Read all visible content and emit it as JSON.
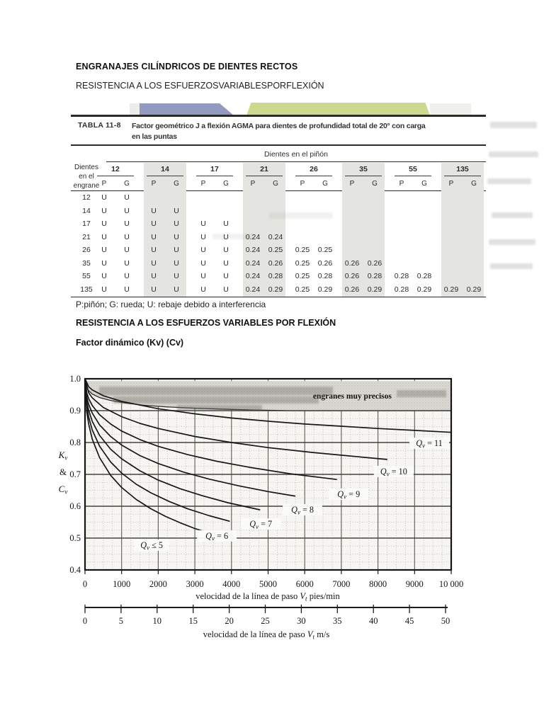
{
  "page": {
    "title": "ENGRANAJES CILÍNDRICOS DE DIENTES RECTOS",
    "subtitle": "RESISTENCIA A LOS ESFUERZOSVARIABLESPORFLEXIÓN",
    "table_note": "P:piñón; G: rueda; U: rebaje debido a interferencia",
    "section_heading": "RESISTENCIA A LOS ESFUERZOS VARIABLES POR FLEXIÓN",
    "subsection_heading": "Factor dinámico (Kv) (Cv)"
  },
  "colors": {
    "deco_blue": "#939ac0",
    "deco_green": "#ccd98e",
    "deco_gray": "#ececea",
    "deco_pale": "#f0f0ed",
    "table_shade": "#e4e4e0",
    "plot_bg": "#f6f5f1",
    "ink": "#1a1a1a"
  },
  "table": {
    "label": "TABLA  11-8",
    "caption_line1": "Factor geométrico J a flexión AGMA para dientes de profundidad total de 20° con carga",
    "caption_line2": "en las puntas",
    "col_group_header": "Dientes en el piñón",
    "stub_header_lines": [
      "Dientes",
      "en el",
      "engrane"
    ],
    "pinion_teeth": [
      "12",
      "14",
      "17",
      "21",
      "26",
      "35",
      "55",
      "135"
    ],
    "sub_cols": [
      "P",
      "G"
    ],
    "shaded_pairs": [
      1,
      3,
      5,
      7
    ],
    "rows": [
      {
        "gear": "12",
        "cells": [
          "U",
          "U",
          "",
          "",
          "",
          "",
          "",
          "",
          "",
          "",
          "",
          "",
          "",
          "",
          "",
          ""
        ]
      },
      {
        "gear": "14",
        "cells": [
          "U",
          "U",
          "U",
          "U",
          "",
          "",
          "",
          "",
          "",
          "",
          "",
          "",
          "",
          "",
          "",
          ""
        ]
      },
      {
        "gear": "17",
        "cells": [
          "U",
          "U",
          "U",
          "U",
          "U",
          "U",
          "",
          "",
          "",
          "",
          "",
          "",
          "",
          "",
          "",
          ""
        ]
      },
      {
        "gear": "21",
        "cells": [
          "U",
          "U",
          "U",
          "U",
          "U",
          "U",
          "0.24",
          "0.24",
          "",
          "",
          "",
          "",
          "",
          "",
          "",
          ""
        ]
      },
      {
        "gear": "26",
        "cells": [
          "U",
          "U",
          "U",
          "U",
          "U",
          "U",
          "0.24",
          "0.25",
          "0.25",
          "0.25",
          "",
          "",
          "",
          "",
          "",
          ""
        ]
      },
      {
        "gear": "35",
        "cells": [
          "U",
          "U",
          "U",
          "U",
          "U",
          "U",
          "0.24",
          "0.26",
          "0.25",
          "0.26",
          "0.26",
          "0.26",
          "",
          "",
          "",
          ""
        ]
      },
      {
        "gear": "55",
        "cells": [
          "U",
          "U",
          "U",
          "U",
          "U",
          "U",
          "0.24",
          "0.28",
          "0.25",
          "0.28",
          "0.26",
          "0.28",
          "0.28",
          "0.28",
          "",
          ""
        ]
      },
      {
        "gear": "135",
        "cells": [
          "U",
          "U",
          "U",
          "U",
          "U",
          "U",
          "0.24",
          "0.29",
          "0.25",
          "0.29",
          "0.26",
          "0.29",
          "0.28",
          "0.29",
          "0.29",
          "0.29"
        ]
      }
    ]
  },
  "chart_data": {
    "type": "line",
    "title": "",
    "ylabel_parts": [
      "Kv",
      "&",
      "Cv"
    ],
    "xlabel_primary_parts": [
      [
        "velocidad de la línea de paso ",
        ""
      ],
      [
        "V",
        "i"
      ],
      [
        "t",
        "is"
      ],
      [
        " pies/min",
        ""
      ]
    ],
    "xlabel_secondary_parts": [
      [
        "velocidad de la línea de paso ",
        ""
      ],
      [
        "V",
        "i"
      ],
      [
        "t",
        "is"
      ],
      [
        " m/s",
        ""
      ]
    ],
    "xlim": [
      0,
      10000
    ],
    "ylim": [
      0.4,
      1.0
    ],
    "x_major_step": 1000,
    "x_minor_step": 250,
    "y_major_step": 0.1,
    "y_minor_step": 0.025,
    "x_tick_labels": [
      "0",
      "1000",
      "2000",
      "3000",
      "4000",
      "5000",
      "6000",
      "7000",
      "8000",
      "9000",
      "10 000"
    ],
    "y_tick_labels": [
      "1.0",
      "0.9",
      "0.8",
      "0.7",
      "0.6",
      "0.5",
      "0.4"
    ],
    "ms_axis": {
      "min": 0,
      "max": 50,
      "step": 5,
      "labels": [
        "0",
        "5",
        "10",
        "15",
        "20",
        "25",
        "30",
        "35",
        "40",
        "45",
        "50"
      ]
    },
    "shaded_region": {
      "label": "engranes muy precisos",
      "label_at": [
        7300,
        0.947
      ],
      "top": 0.993,
      "boundary": [
        [
          0,
          0.993
        ],
        [
          80,
          0.965
        ],
        [
          200,
          0.952
        ],
        [
          400,
          0.941
        ],
        [
          700,
          0.932
        ],
        [
          1100,
          0.924
        ],
        [
          1600,
          0.917
        ],
        [
          2200,
          0.912
        ],
        [
          2900,
          0.908
        ],
        [
          3700,
          0.905
        ],
        [
          4600,
          0.902
        ],
        [
          5600,
          0.9
        ],
        [
          10000,
          0.9
        ]
      ]
    },
    "series": [
      {
        "name": "Qv = 11",
        "label_at": [
          9400,
          0.798
        ],
        "points": [
          [
            0,
            1
          ],
          [
            100,
            0.975
          ],
          [
            200,
            0.965
          ],
          [
            500,
            0.947
          ],
          [
            1000,
            0.929
          ],
          [
            2000,
            0.906
          ],
          [
            3000,
            0.89
          ],
          [
            4000,
            0.877
          ],
          [
            5000,
            0.867
          ],
          [
            6000,
            0.858
          ],
          [
            7000,
            0.851
          ],
          [
            8000,
            0.844
          ],
          [
            9000,
            0.838
          ],
          [
            10000,
            0.832
          ]
        ]
      },
      {
        "name": "Qv = 10",
        "label_at": [
          8430,
          0.709
        ],
        "points": [
          [
            0,
            1
          ],
          [
            100,
            0.956
          ],
          [
            200,
            0.94
          ],
          [
            500,
            0.91
          ],
          [
            1000,
            0.881
          ],
          [
            1500,
            0.86
          ],
          [
            2000,
            0.844
          ],
          [
            3000,
            0.819
          ],
          [
            4000,
            0.8
          ],
          [
            5000,
            0.784
          ],
          [
            6200,
            0.769
          ],
          [
            7200,
            0.758
          ],
          [
            8241,
            0.747
          ]
        ]
      },
      {
        "name": "Qv = 9",
        "label_at": [
          7200,
          0.638
        ],
        "points": [
          [
            0,
            1
          ],
          [
            50,
            0.955
          ],
          [
            100,
            0.938
          ],
          [
            200,
            0.916
          ],
          [
            400,
            0.887
          ],
          [
            700,
            0.858
          ],
          [
            1000,
            0.836
          ],
          [
            1500,
            0.809
          ],
          [
            2000,
            0.788
          ],
          [
            2800,
            0.762
          ],
          [
            3600,
            0.741
          ],
          [
            4500,
            0.722
          ],
          [
            5600,
            0.702
          ],
          [
            6869,
            0.684
          ]
        ]
      },
      {
        "name": "Qv = 8",
        "label_at": [
          5940,
          0.589
        ],
        "points": [
          [
            0,
            1
          ],
          [
            50,
            0.942
          ],
          [
            100,
            0.92
          ],
          [
            200,
            0.892
          ],
          [
            400,
            0.855
          ],
          [
            700,
            0.819
          ],
          [
            1000,
            0.792
          ],
          [
            1500,
            0.759
          ],
          [
            2000,
            0.734
          ],
          [
            2700,
            0.707
          ],
          [
            3400,
            0.685
          ],
          [
            4200,
            0.664
          ],
          [
            5000,
            0.646
          ],
          [
            5731,
            0.632
          ]
        ]
      },
      {
        "name": "Qv = 7",
        "label_at": [
          4800,
          0.544
        ],
        "points": [
          [
            0,
            1
          ],
          [
            50,
            0.927
          ],
          [
            100,
            0.901
          ],
          [
            200,
            0.866
          ],
          [
            400,
            0.822
          ],
          [
            700,
            0.779
          ],
          [
            1000,
            0.749
          ],
          [
            1500,
            0.711
          ],
          [
            2000,
            0.682
          ],
          [
            2600,
            0.655
          ],
          [
            3200,
            0.633
          ],
          [
            3900,
            0.611
          ],
          [
            4769,
            0.589
          ]
        ]
      },
      {
        "name": "Qv = 6",
        "label_at": [
          3600,
          0.507
        ],
        "points": [
          [
            0,
            1
          ],
          [
            50,
            0.912
          ],
          [
            100,
            0.88
          ],
          [
            200,
            0.839
          ],
          [
            400,
            0.788
          ],
          [
            700,
            0.739
          ],
          [
            1000,
            0.704
          ],
          [
            1400,
            0.669
          ],
          [
            1800,
            0.642
          ],
          [
            2300,
            0.615
          ],
          [
            2800,
            0.592
          ],
          [
            3400,
            0.57
          ],
          [
            3940,
            0.553
          ]
        ]
      },
      {
        "name": "Qv ≤ 5",
        "label_at": [
          1820,
          0.478
        ],
        "points": [
          [
            0,
            1
          ],
          [
            50,
            0.895
          ],
          [
            100,
            0.858
          ],
          [
            200,
            0.81
          ],
          [
            400,
            0.752
          ],
          [
            700,
            0.697
          ],
          [
            1000,
            0.659
          ],
          [
            1400,
            0.621
          ],
          [
            1800,
            0.592
          ],
          [
            2200,
            0.568
          ],
          [
            2600,
            0.548
          ],
          [
            3000,
            0.53
          ],
          [
            3223,
            0.522
          ]
        ]
      }
    ]
  }
}
